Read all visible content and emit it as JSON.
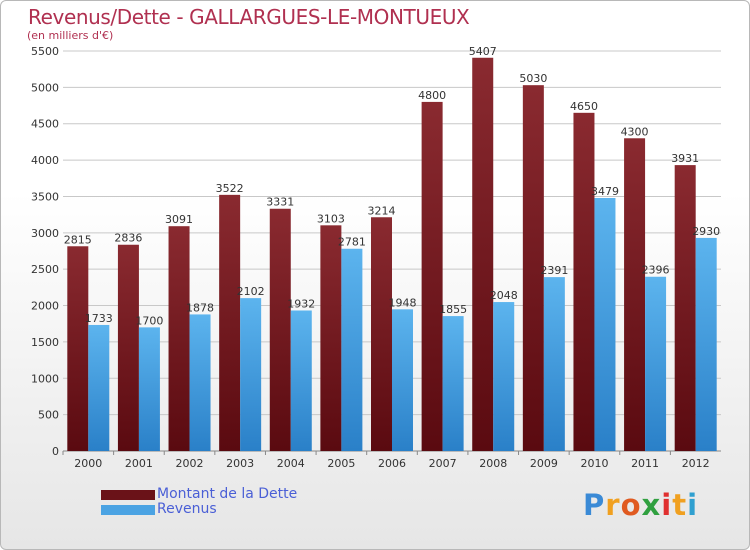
{
  "title": "Revenus/Dette - GALLARGUES-LE-MONTUEUX",
  "subtitle": "(en milliers d'€)",
  "colors": {
    "series_1": "#7a1e24",
    "series_2": "#4ba3e3",
    "title": "#b03050"
  },
  "chart_data": {
    "type": "bar",
    "categories": [
      "2000",
      "2001",
      "2002",
      "2003",
      "2004",
      "2005",
      "2006",
      "2007",
      "2008",
      "2009",
      "2010",
      "2011",
      "2012"
    ],
    "series": [
      {
        "name": "Montant de la Dette",
        "values": [
          2815,
          2836,
          3091,
          3522,
          3331,
          3103,
          3214,
          4800,
          5407,
          5030,
          4650,
          4300,
          3931
        ]
      },
      {
        "name": "Revenus",
        "values": [
          1733,
          1700,
          1878,
          2102,
          1932,
          2781,
          1948,
          1855,
          2048,
          2391,
          3479,
          2396,
          2930
        ]
      }
    ],
    "ylim": [
      0,
      5500
    ],
    "yticks": [
      0,
      500,
      1000,
      1500,
      2000,
      2500,
      3000,
      3500,
      4000,
      4500,
      5000,
      5500
    ],
    "grid": true,
    "legend": "bottom-left"
  },
  "logo": {
    "text": "Proxiti",
    "letters": [
      "P",
      "r",
      "o",
      "x",
      "i",
      "t",
      "i"
    ],
    "colors": [
      "#3a8ad6",
      "#f0a020",
      "#e05a20",
      "#30a040",
      "#e03030",
      "#f0a020",
      "#30a0d0"
    ]
  }
}
